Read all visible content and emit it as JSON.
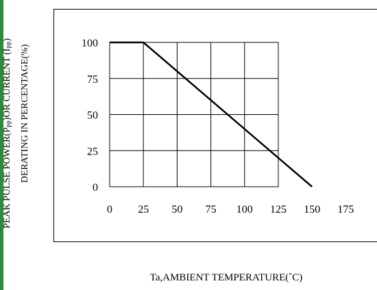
{
  "colors": {
    "accent_strip": "#2e8b3a",
    "line": "#000000",
    "grid": "#000000"
  },
  "chart_data": {
    "type": "line",
    "ylabel_line1": "PEAK PULSE POWER(P",
    "ylabel_sub1": "PP",
    "ylabel_line1b": ")OR CURRENT (I",
    "ylabel_sub2": "PP",
    "ylabel_line1c": ")",
    "ylabel_line2": "DERATING IN PERCENTAGE(%)",
    "xlabel": "Ta,AMBIENT TEMPERATURE(˚C)",
    "xlim": [
      0,
      175
    ],
    "ylim": [
      0,
      100
    ],
    "xticks": [
      0,
      25,
      50,
      75,
      100,
      125,
      150,
      175
    ],
    "yticks": [
      0,
      25,
      50,
      75,
      100
    ],
    "grid": true,
    "series": [
      {
        "x": [
          0,
          25,
          150
        ],
        "y": [
          100,
          100,
          0
        ]
      }
    ]
  }
}
